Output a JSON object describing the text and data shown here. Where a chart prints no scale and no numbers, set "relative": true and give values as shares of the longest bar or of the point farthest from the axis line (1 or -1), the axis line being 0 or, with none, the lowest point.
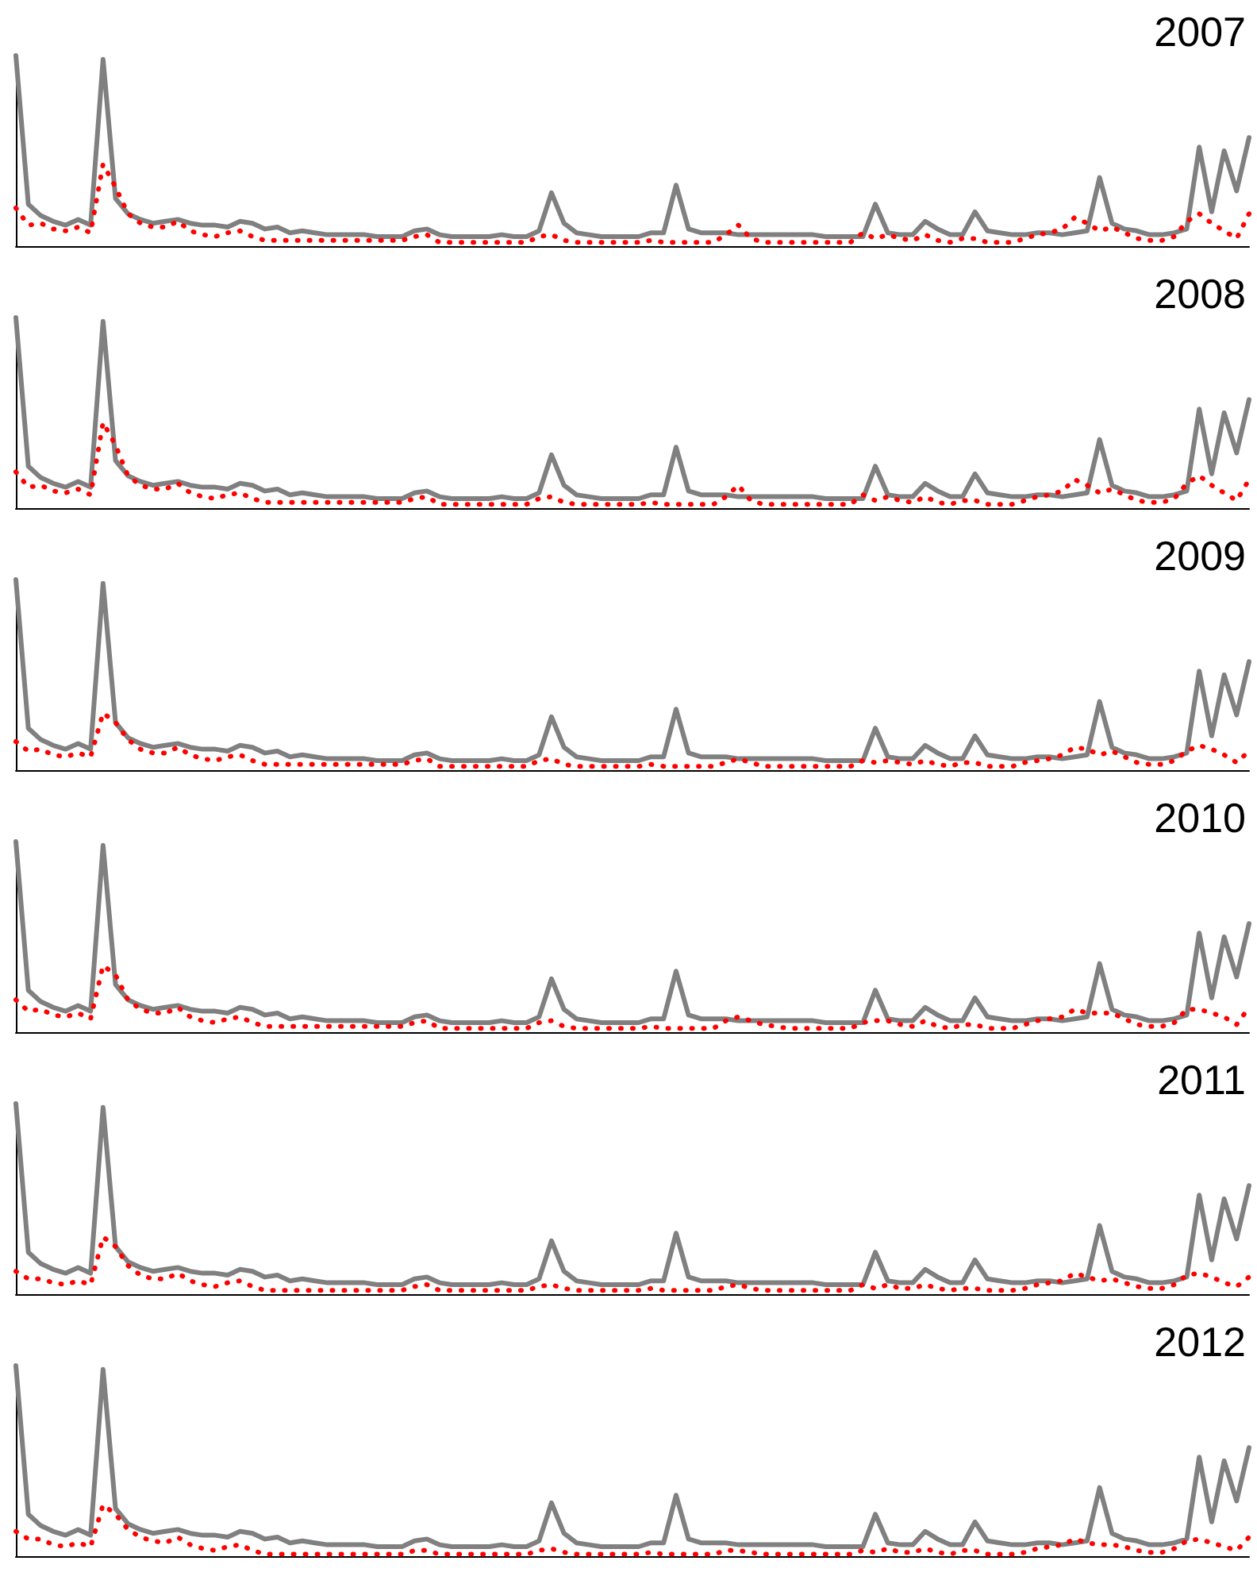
{
  "chart_data": [
    {
      "type": "line",
      "title": "2007",
      "relative": true,
      "marker": "none",
      "grid": false,
      "categories": [
        null,
        null,
        null,
        null,
        null,
        null,
        null,
        null,
        null,
        null,
        null,
        null,
        null,
        null,
        null,
        null,
        null,
        null,
        null,
        null,
        null,
        null,
        null,
        null,
        null,
        null,
        null,
        null,
        null,
        null,
        null,
        null,
        null,
        null,
        null,
        null,
        null,
        null,
        null,
        null,
        null,
        null,
        null,
        null,
        null,
        null,
        null,
        null,
        null,
        null,
        null,
        null,
        null,
        null,
        null,
        null,
        null,
        null,
        null,
        null,
        null,
        null,
        null,
        null,
        null,
        null,
        null,
        null,
        null,
        null,
        null,
        null,
        null,
        null,
        null,
        null,
        null,
        null,
        null,
        null,
        null,
        null,
        null,
        null,
        null,
        null,
        null,
        null,
        null,
        null,
        null,
        null,
        null,
        null,
        null,
        null,
        null,
        null,
        null,
        null
      ],
      "series": [
        {
          "color": "#808080",
          "line_style": "solid",
          "values": [
            1.0,
            0.22,
            0.16,
            0.13,
            0.11,
            0.14,
            0.11,
            0.98,
            0.25,
            0.17,
            0.14,
            0.12,
            0.13,
            0.14,
            0.12,
            0.11,
            0.11,
            0.1,
            0.13,
            0.12,
            0.09,
            0.1,
            0.07,
            0.08,
            0.07,
            0.06,
            0.06,
            0.06,
            0.06,
            0.05,
            0.05,
            0.05,
            0.08,
            0.09,
            0.06,
            0.05,
            0.05,
            0.05,
            0.05,
            0.06,
            0.05,
            0.05,
            0.08,
            0.28,
            0.12,
            0.07,
            0.06,
            0.05,
            0.05,
            0.05,
            0.05,
            0.07,
            0.07,
            0.32,
            0.09,
            0.07,
            0.07,
            0.07,
            0.06,
            0.06,
            0.06,
            0.06,
            0.06,
            0.06,
            0.06,
            0.05,
            0.05,
            0.05,
            0.05,
            0.22,
            0.07,
            0.06,
            0.06,
            0.13,
            0.09,
            0.06,
            0.06,
            0.18,
            0.08,
            0.07,
            0.06,
            0.06,
            0.07,
            0.07,
            0.06,
            0.07,
            0.08,
            0.36,
            0.12,
            0.09,
            0.08,
            0.06,
            0.06,
            0.07,
            0.09,
            0.52,
            0.18,
            0.5,
            0.29,
            0.57
          ]
        },
        {
          "color": "#ff0000",
          "line_style": "dotted",
          "values": [
            0.2,
            0.11,
            0.12,
            0.09,
            0.08,
            0.1,
            0.07,
            0.43,
            0.31,
            0.17,
            0.12,
            0.1,
            0.1,
            0.13,
            0.08,
            0.06,
            0.05,
            0.07,
            0.08,
            0.05,
            0.03,
            0.03,
            0.03,
            0.03,
            0.03,
            0.03,
            0.03,
            0.03,
            0.03,
            0.03,
            0.03,
            0.03,
            0.05,
            0.06,
            0.02,
            0.02,
            0.02,
            0.02,
            0.02,
            0.02,
            0.02,
            0.02,
            0.05,
            0.06,
            0.03,
            0.02,
            0.02,
            0.02,
            0.02,
            0.02,
            0.02,
            0.03,
            0.02,
            0.02,
            0.02,
            0.02,
            0.02,
            0.06,
            0.11,
            0.04,
            0.02,
            0.02,
            0.02,
            0.02,
            0.02,
            0.02,
            0.02,
            0.02,
            0.07,
            0.04,
            0.06,
            0.04,
            0.03,
            0.06,
            0.03,
            0.02,
            0.04,
            0.04,
            0.02,
            0.02,
            0.02,
            0.04,
            0.06,
            0.07,
            0.09,
            0.15,
            0.12,
            0.08,
            0.1,
            0.07,
            0.04,
            0.03,
            0.03,
            0.05,
            0.13,
            0.17,
            0.12,
            0.08,
            0.04,
            0.17
          ]
        }
      ]
    },
    {
      "type": "line",
      "title": "2008",
      "relative": true,
      "marker": "none",
      "grid": false,
      "categories": [
        null,
        null,
        null,
        null,
        null,
        null,
        null,
        null,
        null,
        null,
        null,
        null,
        null,
        null,
        null,
        null,
        null,
        null,
        null,
        null,
        null,
        null,
        null,
        null,
        null,
        null,
        null,
        null,
        null,
        null,
        null,
        null,
        null,
        null,
        null,
        null,
        null,
        null,
        null,
        null,
        null,
        null,
        null,
        null,
        null,
        null,
        null,
        null,
        null,
        null,
        null,
        null,
        null,
        null,
        null,
        null,
        null,
        null,
        null,
        null,
        null,
        null,
        null,
        null,
        null,
        null,
        null,
        null,
        null,
        null,
        null,
        null,
        null,
        null,
        null,
        null,
        null,
        null,
        null,
        null,
        null,
        null,
        null,
        null,
        null,
        null,
        null,
        null,
        null,
        null,
        null,
        null,
        null,
        null,
        null,
        null,
        null,
        null,
        null,
        null
      ],
      "series": [
        {
          "color": "#808080",
          "line_style": "solid",
          "values": [
            1.0,
            0.22,
            0.16,
            0.13,
            0.11,
            0.14,
            0.11,
            0.98,
            0.25,
            0.17,
            0.14,
            0.12,
            0.13,
            0.14,
            0.12,
            0.11,
            0.11,
            0.1,
            0.13,
            0.12,
            0.09,
            0.1,
            0.07,
            0.08,
            0.07,
            0.06,
            0.06,
            0.06,
            0.06,
            0.05,
            0.05,
            0.05,
            0.08,
            0.09,
            0.06,
            0.05,
            0.05,
            0.05,
            0.05,
            0.06,
            0.05,
            0.05,
            0.08,
            0.28,
            0.12,
            0.07,
            0.06,
            0.05,
            0.05,
            0.05,
            0.05,
            0.07,
            0.07,
            0.32,
            0.09,
            0.07,
            0.07,
            0.07,
            0.06,
            0.06,
            0.06,
            0.06,
            0.06,
            0.06,
            0.06,
            0.05,
            0.05,
            0.05,
            0.05,
            0.22,
            0.07,
            0.06,
            0.06,
            0.13,
            0.09,
            0.06,
            0.06,
            0.18,
            0.08,
            0.07,
            0.06,
            0.06,
            0.07,
            0.07,
            0.06,
            0.07,
            0.08,
            0.36,
            0.12,
            0.09,
            0.08,
            0.06,
            0.06,
            0.07,
            0.09,
            0.52,
            0.18,
            0.5,
            0.29,
            0.57
          ]
        },
        {
          "color": "#ff0000",
          "line_style": "dotted",
          "values": [
            0.19,
            0.11,
            0.12,
            0.09,
            0.08,
            0.1,
            0.07,
            0.45,
            0.33,
            0.17,
            0.12,
            0.1,
            0.1,
            0.13,
            0.08,
            0.06,
            0.05,
            0.07,
            0.08,
            0.05,
            0.03,
            0.03,
            0.03,
            0.03,
            0.03,
            0.03,
            0.03,
            0.03,
            0.03,
            0.03,
            0.03,
            0.03,
            0.05,
            0.06,
            0.02,
            0.02,
            0.02,
            0.02,
            0.02,
            0.02,
            0.02,
            0.02,
            0.05,
            0.06,
            0.03,
            0.02,
            0.02,
            0.02,
            0.02,
            0.02,
            0.02,
            0.03,
            0.02,
            0.02,
            0.02,
            0.02,
            0.02,
            0.06,
            0.12,
            0.04,
            0.02,
            0.02,
            0.02,
            0.02,
            0.02,
            0.02,
            0.02,
            0.02,
            0.07,
            0.04,
            0.06,
            0.04,
            0.03,
            0.06,
            0.03,
            0.02,
            0.04,
            0.04,
            0.02,
            0.02,
            0.02,
            0.04,
            0.06,
            0.07,
            0.09,
            0.15,
            0.12,
            0.08,
            0.1,
            0.07,
            0.04,
            0.03,
            0.03,
            0.05,
            0.13,
            0.17,
            0.12,
            0.08,
            0.04,
            0.15
          ]
        }
      ]
    },
    {
      "type": "line",
      "title": "2009",
      "relative": true,
      "marker": "none",
      "grid": false,
      "categories": [
        null,
        null,
        null,
        null,
        null,
        null,
        null,
        null,
        null,
        null,
        null,
        null,
        null,
        null,
        null,
        null,
        null,
        null,
        null,
        null,
        null,
        null,
        null,
        null,
        null,
        null,
        null,
        null,
        null,
        null,
        null,
        null,
        null,
        null,
        null,
        null,
        null,
        null,
        null,
        null,
        null,
        null,
        null,
        null,
        null,
        null,
        null,
        null,
        null,
        null,
        null,
        null,
        null,
        null,
        null,
        null,
        null,
        null,
        null,
        null,
        null,
        null,
        null,
        null,
        null,
        null,
        null,
        null,
        null,
        null,
        null,
        null,
        null,
        null,
        null,
        null,
        null,
        null,
        null,
        null,
        null,
        null,
        null,
        null,
        null,
        null,
        null,
        null,
        null,
        null,
        null,
        null,
        null,
        null,
        null,
        null,
        null,
        null,
        null,
        null
      ],
      "series": [
        {
          "color": "#808080",
          "line_style": "solid",
          "values": [
            1.0,
            0.22,
            0.16,
            0.13,
            0.11,
            0.14,
            0.11,
            0.98,
            0.25,
            0.17,
            0.14,
            0.12,
            0.13,
            0.14,
            0.12,
            0.11,
            0.11,
            0.1,
            0.13,
            0.12,
            0.09,
            0.1,
            0.07,
            0.08,
            0.07,
            0.06,
            0.06,
            0.06,
            0.06,
            0.05,
            0.05,
            0.05,
            0.08,
            0.09,
            0.06,
            0.05,
            0.05,
            0.05,
            0.05,
            0.06,
            0.05,
            0.05,
            0.08,
            0.28,
            0.12,
            0.07,
            0.06,
            0.05,
            0.05,
            0.05,
            0.05,
            0.07,
            0.07,
            0.32,
            0.09,
            0.07,
            0.07,
            0.07,
            0.06,
            0.06,
            0.06,
            0.06,
            0.06,
            0.06,
            0.06,
            0.05,
            0.05,
            0.05,
            0.05,
            0.22,
            0.07,
            0.06,
            0.06,
            0.13,
            0.09,
            0.06,
            0.06,
            0.18,
            0.08,
            0.07,
            0.06,
            0.06,
            0.07,
            0.07,
            0.06,
            0.07,
            0.08,
            0.36,
            0.12,
            0.09,
            0.08,
            0.06,
            0.06,
            0.07,
            0.09,
            0.52,
            0.18,
            0.5,
            0.29,
            0.57
          ]
        },
        {
          "color": "#ff0000",
          "line_style": "dotted",
          "values": [
            0.15,
            0.1,
            0.11,
            0.08,
            0.07,
            0.09,
            0.07,
            0.3,
            0.25,
            0.16,
            0.11,
            0.09,
            0.09,
            0.12,
            0.08,
            0.06,
            0.05,
            0.07,
            0.08,
            0.05,
            0.03,
            0.03,
            0.03,
            0.03,
            0.03,
            0.03,
            0.03,
            0.03,
            0.03,
            0.03,
            0.03,
            0.03,
            0.05,
            0.06,
            0.02,
            0.02,
            0.02,
            0.02,
            0.02,
            0.02,
            0.02,
            0.02,
            0.05,
            0.06,
            0.03,
            0.02,
            0.02,
            0.02,
            0.02,
            0.02,
            0.02,
            0.03,
            0.02,
            0.02,
            0.02,
            0.02,
            0.02,
            0.04,
            0.06,
            0.04,
            0.02,
            0.02,
            0.02,
            0.02,
            0.02,
            0.02,
            0.02,
            0.02,
            0.05,
            0.04,
            0.05,
            0.04,
            0.03,
            0.05,
            0.03,
            0.02,
            0.04,
            0.04,
            0.02,
            0.02,
            0.02,
            0.04,
            0.05,
            0.06,
            0.08,
            0.12,
            0.11,
            0.08,
            0.1,
            0.07,
            0.04,
            0.03,
            0.03,
            0.05,
            0.1,
            0.13,
            0.11,
            0.08,
            0.04,
            0.1
          ]
        }
      ]
    },
    {
      "type": "line",
      "title": "2010",
      "relative": true,
      "marker": "none",
      "grid": false,
      "categories": [
        null,
        null,
        null,
        null,
        null,
        null,
        null,
        null,
        null,
        null,
        null,
        null,
        null,
        null,
        null,
        null,
        null,
        null,
        null,
        null,
        null,
        null,
        null,
        null,
        null,
        null,
        null,
        null,
        null,
        null,
        null,
        null,
        null,
        null,
        null,
        null,
        null,
        null,
        null,
        null,
        null,
        null,
        null,
        null,
        null,
        null,
        null,
        null,
        null,
        null,
        null,
        null,
        null,
        null,
        null,
        null,
        null,
        null,
        null,
        null,
        null,
        null,
        null,
        null,
        null,
        null,
        null,
        null,
        null,
        null,
        null,
        null,
        null,
        null,
        null,
        null,
        null,
        null,
        null,
        null,
        null,
        null,
        null,
        null,
        null,
        null,
        null,
        null,
        null,
        null,
        null,
        null,
        null,
        null,
        null,
        null,
        null,
        null,
        null,
        null
      ],
      "series": [
        {
          "color": "#808080",
          "line_style": "solid",
          "values": [
            1.0,
            0.22,
            0.16,
            0.13,
            0.11,
            0.14,
            0.11,
            0.98,
            0.25,
            0.17,
            0.14,
            0.12,
            0.13,
            0.14,
            0.12,
            0.11,
            0.11,
            0.1,
            0.13,
            0.12,
            0.09,
            0.1,
            0.07,
            0.08,
            0.07,
            0.06,
            0.06,
            0.06,
            0.06,
            0.05,
            0.05,
            0.05,
            0.08,
            0.09,
            0.06,
            0.05,
            0.05,
            0.05,
            0.05,
            0.06,
            0.05,
            0.05,
            0.08,
            0.28,
            0.12,
            0.07,
            0.06,
            0.05,
            0.05,
            0.05,
            0.05,
            0.07,
            0.07,
            0.32,
            0.09,
            0.07,
            0.07,
            0.07,
            0.06,
            0.06,
            0.06,
            0.06,
            0.06,
            0.06,
            0.06,
            0.05,
            0.05,
            0.05,
            0.05,
            0.22,
            0.07,
            0.06,
            0.06,
            0.13,
            0.09,
            0.06,
            0.06,
            0.18,
            0.08,
            0.07,
            0.06,
            0.06,
            0.07,
            0.07,
            0.06,
            0.07,
            0.08,
            0.36,
            0.12,
            0.09,
            0.08,
            0.06,
            0.06,
            0.07,
            0.09,
            0.52,
            0.18,
            0.5,
            0.29,
            0.57
          ]
        },
        {
          "color": "#ff0000",
          "line_style": "dotted",
          "values": [
            0.17,
            0.11,
            0.12,
            0.09,
            0.08,
            0.1,
            0.07,
            0.35,
            0.3,
            0.17,
            0.12,
            0.1,
            0.1,
            0.13,
            0.08,
            0.06,
            0.05,
            0.07,
            0.08,
            0.05,
            0.03,
            0.03,
            0.03,
            0.03,
            0.03,
            0.03,
            0.03,
            0.03,
            0.03,
            0.03,
            0.03,
            0.03,
            0.05,
            0.06,
            0.02,
            0.02,
            0.02,
            0.02,
            0.02,
            0.02,
            0.02,
            0.02,
            0.05,
            0.06,
            0.03,
            0.02,
            0.02,
            0.02,
            0.02,
            0.02,
            0.02,
            0.03,
            0.02,
            0.02,
            0.02,
            0.02,
            0.02,
            0.06,
            0.08,
            0.06,
            0.04,
            0.03,
            0.02,
            0.02,
            0.02,
            0.02,
            0.02,
            0.02,
            0.05,
            0.06,
            0.06,
            0.04,
            0.03,
            0.06,
            0.03,
            0.02,
            0.04,
            0.04,
            0.02,
            0.02,
            0.02,
            0.04,
            0.06,
            0.07,
            0.08,
            0.12,
            0.1,
            0.1,
            0.1,
            0.07,
            0.04,
            0.03,
            0.03,
            0.05,
            0.12,
            0.12,
            0.1,
            0.08,
            0.04,
            0.13
          ]
        }
      ]
    },
    {
      "type": "line",
      "title": "2011",
      "relative": true,
      "marker": "none",
      "grid": false,
      "categories": [
        null,
        null,
        null,
        null,
        null,
        null,
        null,
        null,
        null,
        null,
        null,
        null,
        null,
        null,
        null,
        null,
        null,
        null,
        null,
        null,
        null,
        null,
        null,
        null,
        null,
        null,
        null,
        null,
        null,
        null,
        null,
        null,
        null,
        null,
        null,
        null,
        null,
        null,
        null,
        null,
        null,
        null,
        null,
        null,
        null,
        null,
        null,
        null,
        null,
        null,
        null,
        null,
        null,
        null,
        null,
        null,
        null,
        null,
        null,
        null,
        null,
        null,
        null,
        null,
        null,
        null,
        null,
        null,
        null,
        null,
        null,
        null,
        null,
        null,
        null,
        null,
        null,
        null,
        null,
        null,
        null,
        null,
        null,
        null,
        null,
        null,
        null,
        null,
        null,
        null,
        null,
        null,
        null,
        null,
        null,
        null,
        null,
        null,
        null,
        null
      ],
      "series": [
        {
          "color": "#808080",
          "line_style": "solid",
          "values": [
            1.0,
            0.22,
            0.16,
            0.13,
            0.11,
            0.14,
            0.11,
            0.98,
            0.25,
            0.17,
            0.14,
            0.12,
            0.13,
            0.14,
            0.12,
            0.11,
            0.11,
            0.1,
            0.13,
            0.12,
            0.09,
            0.1,
            0.07,
            0.08,
            0.07,
            0.06,
            0.06,
            0.06,
            0.06,
            0.05,
            0.05,
            0.05,
            0.08,
            0.09,
            0.06,
            0.05,
            0.05,
            0.05,
            0.05,
            0.06,
            0.05,
            0.05,
            0.08,
            0.28,
            0.12,
            0.07,
            0.06,
            0.05,
            0.05,
            0.05,
            0.05,
            0.07,
            0.07,
            0.32,
            0.09,
            0.07,
            0.07,
            0.07,
            0.06,
            0.06,
            0.06,
            0.06,
            0.06,
            0.06,
            0.06,
            0.05,
            0.05,
            0.05,
            0.05,
            0.22,
            0.07,
            0.06,
            0.06,
            0.13,
            0.09,
            0.06,
            0.06,
            0.18,
            0.08,
            0.07,
            0.06,
            0.06,
            0.07,
            0.07,
            0.06,
            0.07,
            0.08,
            0.36,
            0.12,
            0.09,
            0.08,
            0.06,
            0.06,
            0.07,
            0.09,
            0.52,
            0.18,
            0.5,
            0.29,
            0.57
          ]
        },
        {
          "color": "#ff0000",
          "line_style": "dotted",
          "values": [
            0.12,
            0.08,
            0.08,
            0.06,
            0.05,
            0.07,
            0.05,
            0.3,
            0.25,
            0.15,
            0.1,
            0.08,
            0.08,
            0.11,
            0.07,
            0.05,
            0.04,
            0.06,
            0.07,
            0.04,
            0.02,
            0.02,
            0.02,
            0.02,
            0.02,
            0.02,
            0.02,
            0.02,
            0.02,
            0.02,
            0.02,
            0.02,
            0.04,
            0.05,
            0.02,
            0.02,
            0.02,
            0.02,
            0.02,
            0.02,
            0.02,
            0.02,
            0.04,
            0.05,
            0.03,
            0.02,
            0.02,
            0.02,
            0.02,
            0.02,
            0.02,
            0.03,
            0.02,
            0.02,
            0.02,
            0.02,
            0.02,
            0.04,
            0.05,
            0.03,
            0.02,
            0.02,
            0.02,
            0.02,
            0.02,
            0.02,
            0.02,
            0.02,
            0.05,
            0.03,
            0.05,
            0.03,
            0.03,
            0.05,
            0.03,
            0.02,
            0.03,
            0.03,
            0.02,
            0.02,
            0.02,
            0.03,
            0.05,
            0.06,
            0.07,
            0.11,
            0.09,
            0.07,
            0.08,
            0.06,
            0.04,
            0.03,
            0.03,
            0.05,
            0.1,
            0.11,
            0.09,
            0.06,
            0.04,
            0.09
          ]
        }
      ]
    },
    {
      "type": "line",
      "title": "2012",
      "relative": true,
      "marker": "none",
      "grid": false,
      "categories": [
        null,
        null,
        null,
        null,
        null,
        null,
        null,
        null,
        null,
        null,
        null,
        null,
        null,
        null,
        null,
        null,
        null,
        null,
        null,
        null,
        null,
        null,
        null,
        null,
        null,
        null,
        null,
        null,
        null,
        null,
        null,
        null,
        null,
        null,
        null,
        null,
        null,
        null,
        null,
        null,
        null,
        null,
        null,
        null,
        null,
        null,
        null,
        null,
        null,
        null,
        null,
        null,
        null,
        null,
        null,
        null,
        null,
        null,
        null,
        null,
        null,
        null,
        null,
        null,
        null,
        null,
        null,
        null,
        null,
        null,
        null,
        null,
        null,
        null,
        null,
        null,
        null,
        null,
        null,
        null,
        null,
        null,
        null,
        null,
        null,
        null,
        null,
        null,
        null,
        null,
        null,
        null,
        null,
        null,
        null,
        null,
        null,
        null,
        null,
        null
      ],
      "series": [
        {
          "color": "#808080",
          "line_style": "solid",
          "values": [
            1.0,
            0.22,
            0.16,
            0.13,
            0.11,
            0.14,
            0.11,
            0.98,
            0.25,
            0.17,
            0.14,
            0.12,
            0.13,
            0.14,
            0.12,
            0.11,
            0.11,
            0.1,
            0.13,
            0.12,
            0.09,
            0.1,
            0.07,
            0.08,
            0.07,
            0.06,
            0.06,
            0.06,
            0.06,
            0.05,
            0.05,
            0.05,
            0.08,
            0.09,
            0.06,
            0.05,
            0.05,
            0.05,
            0.05,
            0.06,
            0.05,
            0.05,
            0.08,
            0.28,
            0.12,
            0.07,
            0.06,
            0.05,
            0.05,
            0.05,
            0.05,
            0.07,
            0.07,
            0.32,
            0.09,
            0.07,
            0.07,
            0.07,
            0.06,
            0.06,
            0.06,
            0.06,
            0.06,
            0.06,
            0.06,
            0.05,
            0.05,
            0.05,
            0.05,
            0.22,
            0.07,
            0.06,
            0.06,
            0.13,
            0.09,
            0.06,
            0.06,
            0.18,
            0.08,
            0.07,
            0.06,
            0.06,
            0.07,
            0.07,
            0.06,
            0.07,
            0.08,
            0.36,
            0.12,
            0.09,
            0.08,
            0.06,
            0.06,
            0.07,
            0.09,
            0.52,
            0.18,
            0.5,
            0.29,
            0.57
          ]
        },
        {
          "color": "#ff0000",
          "line_style": "dotted",
          "values": [
            0.13,
            0.09,
            0.09,
            0.06,
            0.05,
            0.07,
            0.05,
            0.27,
            0.22,
            0.14,
            0.1,
            0.08,
            0.07,
            0.1,
            0.06,
            0.04,
            0.03,
            0.05,
            0.06,
            0.03,
            0.01,
            0.01,
            0.01,
            0.01,
            0.01,
            0.01,
            0.01,
            0.01,
            0.01,
            0.01,
            0.01,
            0.01,
            0.03,
            0.03,
            0.01,
            0.01,
            0.01,
            0.01,
            0.01,
            0.01,
            0.01,
            0.01,
            0.03,
            0.04,
            0.02,
            0.01,
            0.01,
            0.01,
            0.01,
            0.01,
            0.01,
            0.02,
            0.01,
            0.01,
            0.01,
            0.01,
            0.01,
            0.03,
            0.03,
            0.02,
            0.01,
            0.01,
            0.01,
            0.01,
            0.01,
            0.01,
            0.01,
            0.01,
            0.03,
            0.02,
            0.04,
            0.02,
            0.02,
            0.04,
            0.02,
            0.01,
            0.03,
            0.03,
            0.01,
            0.01,
            0.01,
            0.02,
            0.04,
            0.05,
            0.06,
            0.09,
            0.07,
            0.06,
            0.06,
            0.05,
            0.03,
            0.02,
            0.02,
            0.04,
            0.08,
            0.09,
            0.07,
            0.05,
            0.03,
            0.1
          ]
        }
      ]
    }
  ]
}
